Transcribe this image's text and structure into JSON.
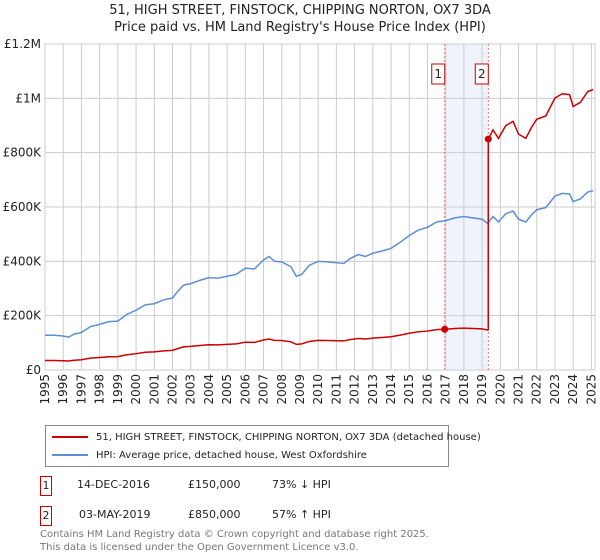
{
  "chart_data": {
    "type": "line",
    "title": "51, HIGH STREET, FINSTOCK, CHIPPING NORTON, OX7 3DA",
    "subtitle": "Price paid vs. HM Land Registry's House Price Index (HPI)",
    "xlim": [
      1995,
      2025.2
    ],
    "ylim": [
      0,
      1200000
    ],
    "yticks": [
      {
        "v": 0,
        "label": "£0"
      },
      {
        "v": 200000,
        "label": "£200K"
      },
      {
        "v": 400000,
        "label": "£400K"
      },
      {
        "v": 600000,
        "label": "£600K"
      },
      {
        "v": 800000,
        "label": "£800K"
      },
      {
        "v": 1000000,
        "label": "£1M"
      },
      {
        "v": 1200000,
        "label": "£1.2M"
      }
    ],
    "xticks": [
      1995,
      1996,
      1997,
      1998,
      1999,
      2000,
      2001,
      2002,
      2003,
      2004,
      2005,
      2006,
      2007,
      2008,
      2009,
      2010,
      2011,
      2012,
      2013,
      2014,
      2015,
      2016,
      2017,
      2018,
      2019,
      2020,
      2021,
      2022,
      2023,
      2024,
      2025
    ],
    "grid": true,
    "hpi_series": {
      "name": "HPI: Average price, detached house, West Oxfordshire",
      "color": "#5b8fd4",
      "x": [
        1995,
        1995.5,
        1996,
        1996.3,
        1996.6,
        1997,
        1997.5,
        1998,
        1998.5,
        1999,
        1999.5,
        2000,
        2000.5,
        2001,
        2001.5,
        2002,
        2002.3,
        2002.6,
        2003,
        2003.5,
        2004,
        2004.5,
        2005,
        2005.5,
        2006,
        2006.5,
        2007,
        2007.3,
        2007.6,
        2008,
        2008.5,
        2008.8,
        2009.1,
        2009.5,
        2010,
        2010.5,
        2011,
        2011.4,
        2011.8,
        2012.2,
        2012.6,
        2013,
        2013.5,
        2014,
        2014.5,
        2015,
        2015.5,
        2016,
        2016.5,
        2017,
        2017.5,
        2018,
        2018.5,
        2019,
        2019.3,
        2019.6,
        2019.9,
        2020.3,
        2020.7,
        2021,
        2021.4,
        2021.7,
        2022,
        2022.5,
        2023,
        2023.4,
        2023.8,
        2024,
        2024.4,
        2024.8,
        2025.1
      ],
      "y": [
        128000,
        128000,
        125000,
        121000,
        132000,
        138000,
        160000,
        168000,
        178000,
        180000,
        205000,
        220000,
        240000,
        244000,
        258000,
        265000,
        290000,
        312000,
        318000,
        330000,
        340000,
        338000,
        345000,
        352000,
        375000,
        372000,
        405000,
        418000,
        400000,
        398000,
        380000,
        345000,
        352000,
        385000,
        400000,
        398000,
        395000,
        392000,
        412000,
        425000,
        418000,
        430000,
        438000,
        448000,
        470000,
        495000,
        515000,
        525000,
        545000,
        550000,
        560000,
        565000,
        560000,
        555000,
        540000,
        565000,
        545000,
        575000,
        585000,
        555000,
        545000,
        570000,
        590000,
        598000,
        640000,
        650000,
        648000,
        620000,
        630000,
        655000,
        660000
      ]
    },
    "sales": [
      {
        "n": "1",
        "date": "14-DEC-2016",
        "t": 2016.95,
        "price": 150000,
        "price_label": "£150,000",
        "delta": "73% ↓ HPI"
      },
      {
        "n": "2",
        "date": "03-MAY-2019",
        "t": 2019.34,
        "price": 850000,
        "price_label": "£850,000",
        "delta": "57% ↑ HPI"
      }
    ],
    "property_series": {
      "name": "51, HIGH STREET, FINSTOCK, CHIPPING NORTON, OX7 3DA (detached house)",
      "color": "#cc0000"
    }
  },
  "footer": {
    "line1": "Contains HM Land Registry data © Crown copyright and database right 2025.",
    "line2": "This data is licensed under the Open Government Licence v3.0."
  }
}
